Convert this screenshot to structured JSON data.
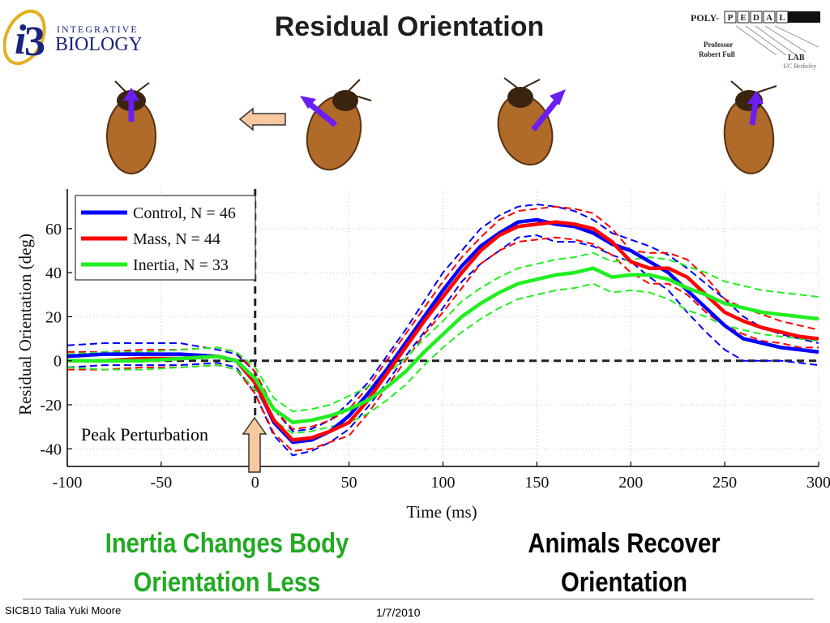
{
  "title": "Residual Orientation",
  "logos": {
    "integrative": {
      "line1": "INTEGRATIVE",
      "line2": "BIOLOGY"
    },
    "polypedal": {
      "prefix": "POLY-",
      "letters": [
        "P",
        "E",
        "D",
        "A",
        "L"
      ],
      "professor": "Professor",
      "name": "Robert Full",
      "lab": "LAB",
      "school": "UC Berkeley"
    }
  },
  "arrow_color": "#6a1ef0",
  "block_arrow_color": "#f8c8a0",
  "captions": {
    "left": [
      "Inertia Changes Body",
      "Orientation Less"
    ],
    "right": [
      "Animals Recover",
      "Orientation"
    ]
  },
  "footer": {
    "author": "SICB10 Talia Yuki Moore",
    "date": "1/7/2010"
  },
  "chart_data": {
    "type": "line",
    "xlabel": "Time (ms)",
    "ylabel": "Residual Orientation (deg)",
    "xlim": [
      -100,
      300
    ],
    "ylim": [
      -48,
      78
    ],
    "xticks": [
      -100,
      -50,
      0,
      50,
      100,
      150,
      200,
      250,
      300
    ],
    "yticks": [
      -40,
      -20,
      0,
      20,
      40,
      60
    ],
    "grid": true,
    "legend": "top-left",
    "annotation": "Peak Perturbation",
    "annotation_x": 0,
    "x": [
      -100,
      -80,
      -60,
      -40,
      -20,
      -10,
      0,
      10,
      20,
      30,
      40,
      50,
      60,
      70,
      80,
      90,
      100,
      110,
      120,
      130,
      140,
      150,
      160,
      170,
      180,
      190,
      200,
      210,
      220,
      230,
      240,
      250,
      260,
      270,
      280,
      290,
      300
    ],
    "series": [
      {
        "name": "Control, N = 46",
        "color": "#0000ff",
        "mean": [
          2,
          3,
          3,
          3,
          2,
          0,
          -10,
          -28,
          -37,
          -36,
          -32,
          -25,
          -15,
          -4,
          8,
          20,
          32,
          43,
          52,
          58,
          63,
          64,
          62,
          61,
          58,
          53,
          50,
          45,
          40,
          32,
          24,
          16,
          10,
          8,
          6,
          5,
          4
        ],
        "upper": [
          7,
          8,
          8,
          8,
          5,
          3,
          -5,
          -22,
          -32,
          -31,
          -27,
          -19,
          -10,
          2,
          14,
          27,
          40,
          50,
          60,
          66,
          70,
          71,
          70,
          68,
          64,
          58,
          55,
          52,
          48,
          42,
          35,
          28,
          20,
          15,
          12,
          10,
          8
        ],
        "lower": [
          -3,
          -2,
          -2,
          -2,
          -1,
          -3,
          -15,
          -34,
          -43,
          -41,
          -37,
          -31,
          -21,
          -10,
          2,
          13,
          24,
          36,
          44,
          50,
          56,
          57,
          54,
          54,
          52,
          48,
          45,
          38,
          32,
          22,
          13,
          5,
          0,
          0,
          0,
          -1,
          -2
        ]
      },
      {
        "name": "Mass, N = 44",
        "color": "#ff0000",
        "mean": [
          0,
          0,
          1,
          1,
          2,
          0,
          -10,
          -27,
          -36,
          -35,
          -32,
          -28,
          -18,
          -6,
          6,
          18,
          29,
          40,
          50,
          57,
          61,
          62,
          63,
          62,
          60,
          54,
          45,
          42,
          42,
          38,
          30,
          22,
          18,
          15,
          13,
          11,
          10
        ],
        "upper": [
          4,
          4,
          5,
          5,
          6,
          4,
          -5,
          -22,
          -31,
          -30,
          -27,
          -22,
          -12,
          0,
          12,
          24,
          36,
          47,
          56,
          64,
          68,
          69,
          70,
          69,
          67,
          60,
          50,
          49,
          49,
          46,
          38,
          28,
          24,
          21,
          18,
          16,
          14
        ],
        "lower": [
          -4,
          -4,
          -3,
          -3,
          -2,
          -4,
          -15,
          -33,
          -41,
          -40,
          -37,
          -34,
          -24,
          -12,
          0,
          12,
          22,
          33,
          44,
          50,
          54,
          55,
          56,
          55,
          53,
          48,
          40,
          35,
          35,
          30,
          22,
          16,
          12,
          9,
          8,
          6,
          6
        ]
      },
      {
        "name": "Inertia, N = 33",
        "color": "#22ee22",
        "mean": [
          0,
          0,
          0,
          1,
          2,
          0,
          -8,
          -22,
          -28,
          -27,
          -25,
          -22,
          -18,
          -12,
          -5,
          4,
          12,
          20,
          26,
          31,
          35,
          37,
          39,
          40,
          42,
          38,
          39,
          39,
          37,
          33,
          30,
          26,
          24,
          22,
          21,
          20,
          19
        ],
        "upper": [
          3,
          4,
          4,
          5,
          6,
          4,
          -3,
          -17,
          -23,
          -22,
          -20,
          -16,
          -12,
          -6,
          1,
          10,
          18,
          27,
          33,
          38,
          42,
          44,
          46,
          47,
          49,
          45,
          46,
          47,
          46,
          43,
          40,
          36,
          34,
          32,
          31,
          30,
          29
        ],
        "lower": [
          -3,
          -4,
          -4,
          -3,
          -2,
          -4,
          -13,
          -27,
          -33,
          -32,
          -30,
          -28,
          -24,
          -18,
          -11,
          -2,
          6,
          13,
          19,
          24,
          28,
          30,
          32,
          33,
          35,
          31,
          32,
          31,
          28,
          23,
          20,
          16,
          14,
          12,
          11,
          10,
          9
        ]
      }
    ]
  }
}
